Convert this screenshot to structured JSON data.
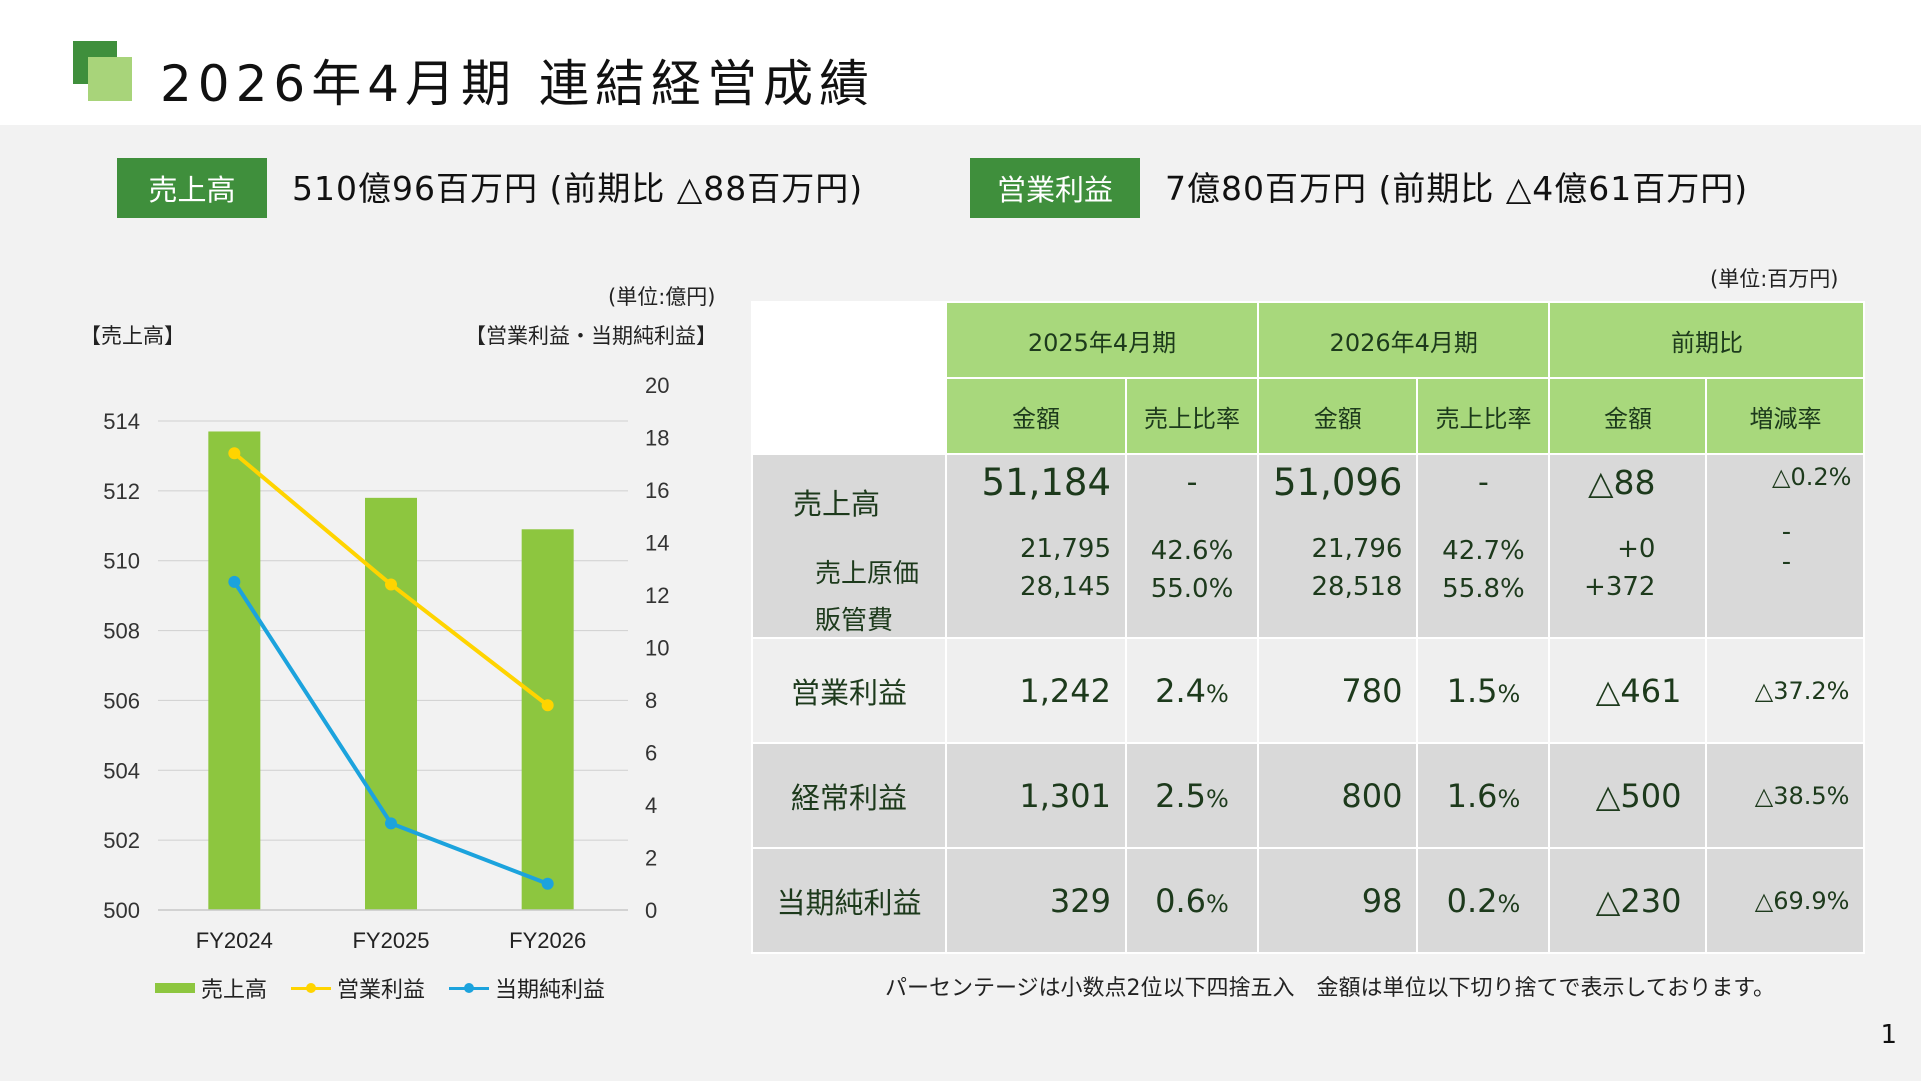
{
  "header": {
    "title": "2026年4月期 連結経営成績"
  },
  "kpis": {
    "sales_label": "売上高",
    "sales_value": "510億96百万円 (前期比 △88百万円)",
    "op_label": "営業利益",
    "op_value": "7億80百万円 (前期比 △4億61百万円)"
  },
  "chart_labels": {
    "unit": "(単位:億円)",
    "left_axis_title": "【売上高】",
    "right_axis_title": "【営業利益・当期純利益】"
  },
  "chart_data": {
    "type": "bar",
    "categories": [
      "FY2024",
      "FY2025",
      "FY2026"
    ],
    "series": [
      {
        "name": "売上高",
        "type": "bar",
        "axis": "left",
        "values": [
          513.7,
          511.8,
          510.9
        ],
        "color": "#8dc63f"
      },
      {
        "name": "営業利益",
        "type": "line",
        "axis": "right",
        "values": [
          17.4,
          12.4,
          7.8
        ],
        "color": "#ffd400"
      },
      {
        "name": "当期純利益",
        "type": "line",
        "axis": "right",
        "values": [
          12.5,
          3.3,
          1.0
        ],
        "color": "#1ca3dd"
      }
    ],
    "left_ylim": [
      500,
      514
    ],
    "left_ticks": [
      "500",
      "502",
      "504",
      "506",
      "508",
      "510",
      "512",
      "514"
    ],
    "right_ylim": [
      0,
      20
    ],
    "right_ticks": [
      "0",
      "2",
      "4",
      "6",
      "8",
      "10",
      "12",
      "14",
      "16",
      "18",
      "20"
    ],
    "grid": true,
    "legend": "bottom"
  },
  "table": {
    "unit": "(単位:百万円)",
    "period_headers": [
      "2025年4月期",
      "2026年4月期",
      "前期比"
    ],
    "sub_headers": [
      "金額",
      "売上比率",
      "金額",
      "売上比率",
      "金額",
      "増減率"
    ],
    "sales": {
      "label": "売上高",
      "v2025": "51,184",
      "r2025": "-",
      "v2026": "51,096",
      "r2026": "-",
      "diff": "△88",
      "rate": "△0.2%"
    },
    "cogs": {
      "label": "売上原価",
      "v2025": "21,795",
      "r2025": "42.6%",
      "v2026": "21,796",
      "r2026": "42.7%",
      "diff": "+0",
      "rate": "-"
    },
    "sga": {
      "label": "販管費",
      "v2025": "28,145",
      "r2025": "55.0%",
      "v2026": "28,518",
      "r2026": "55.8%",
      "diff": "+372",
      "rate": "-"
    },
    "rows": [
      {
        "label": "営業利益",
        "v2025": "1,242",
        "r2025": "2.4",
        "v2026": "780",
        "r2026": "1.5",
        "diff": "△461",
        "rate": "△37.2%"
      },
      {
        "label": "経常利益",
        "v2025": "1,301",
        "r2025": "2.5",
        "v2026": "800",
        "r2026": "1.6",
        "diff": "△500",
        "rate": "△38.5%"
      },
      {
        "label": "当期純利益",
        "v2025": "329",
        "r2025": "0.6",
        "v2026": "98",
        "r2026": "0.2",
        "diff": "△230",
        "rate": "△69.9%"
      }
    ],
    "pct_unit": "%"
  },
  "footer": {
    "note": "パーセンテージは小数点2位以下四捨五入　金額は単位以下切り捨てで表示しております。",
    "page": "1"
  }
}
